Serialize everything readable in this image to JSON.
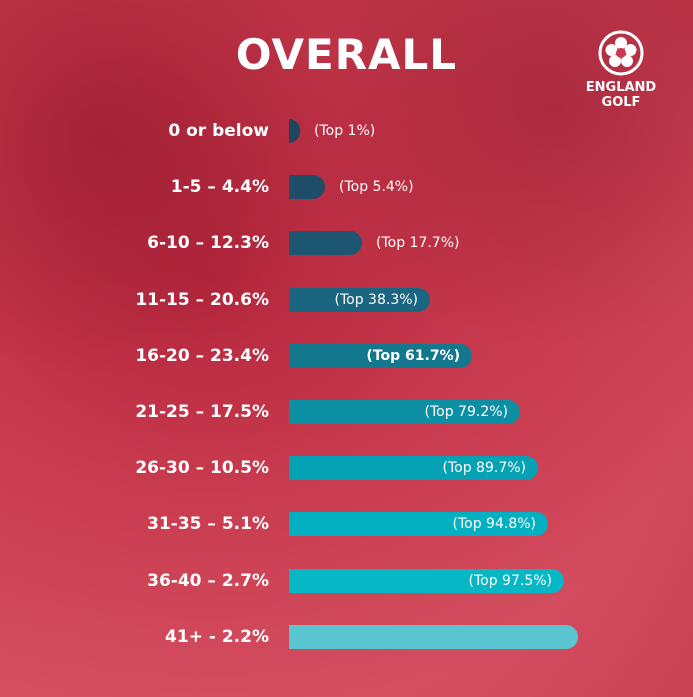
{
  "title": "OVERALL",
  "logo": {
    "line1": "ENGLAND",
    "line2": "GOLF",
    "icon": "rose-emblem-icon"
  },
  "chart_data": {
    "type": "bar",
    "orientation": "horizontal",
    "title": "OVERALL",
    "categories": [
      "0 or below",
      "1-5 – 4.4%",
      "6-10 – 12.3%",
      "11-15 – 20.6%",
      "16-20 – 23.4%",
      "21-25 – 17.5%",
      "26-30 – 10.5%",
      "31-35 – 5.1%",
      "36-40 – 2.7%",
      "41+ - 2.2%"
    ],
    "values": [
      1,
      4.4,
      12.3,
      20.6,
      23.4,
      17.5,
      10.5,
      5.1,
      2.7,
      2.2
    ],
    "cumulative_labels": [
      "(Top 1%)",
      "(Top 5.4%)",
      "(Top 17.7%)",
      "(Top 38.3%)",
      "(Top 61.7%)",
      "(Top 79.2%)",
      "(Top 89.7%)",
      "(Top 94.8%)",
      "(Top 97.5%)",
      ""
    ],
    "colors": [
      "#1d4660",
      "#1e4d68",
      "#1d5670",
      "#1a6580",
      "#13788e",
      "#0c8ea3",
      "#05a2b5",
      "#02b0c1",
      "#06b7c6",
      "#58c5d0"
    ],
    "grid": false,
    "legend": "none"
  }
}
